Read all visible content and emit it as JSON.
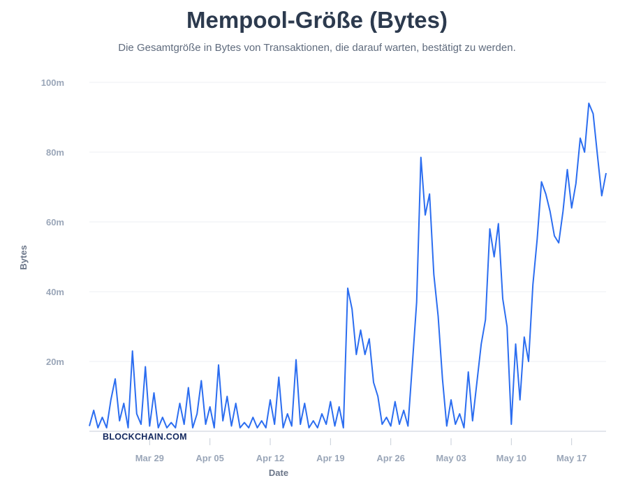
{
  "title": "Mempool-Größe (Bytes)",
  "subtitle": "Die Gesamtgröße in Bytes von Transaktionen, die darauf warten, bestätigt zu werden.",
  "watermark": "BLOCKCHAIN.COM",
  "colors": {
    "line": "#2b6df0",
    "grid": "#eceff3",
    "axis": "#c7ced8"
  },
  "chart_data": {
    "type": "line",
    "title": "Mempool-Größe (Bytes)",
    "xlabel": "Date",
    "ylabel": "Bytes",
    "ylim": [
      0,
      100000000
    ],
    "y_ticks": [
      {
        "value": 20000000,
        "label": "20m"
      },
      {
        "value": 40000000,
        "label": "40m"
      },
      {
        "value": 60000000,
        "label": "60m"
      },
      {
        "value": 80000000,
        "label": "80m"
      },
      {
        "value": 100000000,
        "label": "100m"
      }
    ],
    "x_range": [
      "2020-03-22",
      "2020-05-21"
    ],
    "x_ticks": [
      {
        "date": "2020-03-29",
        "label": "Mar 29"
      },
      {
        "date": "2020-04-05",
        "label": "Apr 05"
      },
      {
        "date": "2020-04-12",
        "label": "Apr 12"
      },
      {
        "date": "2020-04-19",
        "label": "Apr 19"
      },
      {
        "date": "2020-04-26",
        "label": "Apr 26"
      },
      {
        "date": "2020-05-03",
        "label": "May 03"
      },
      {
        "date": "2020-05-10",
        "label": "May 10"
      },
      {
        "date": "2020-05-17",
        "label": "May 17"
      }
    ],
    "grid": true,
    "series": [
      {
        "points": [
          [
            "2020-03-22",
            1500000
          ],
          [
            "2020-03-22T12",
            6000000
          ],
          [
            "2020-03-23",
            1000000
          ],
          [
            "2020-03-23T12",
            4000000
          ],
          [
            "2020-03-24",
            1000000
          ],
          [
            "2020-03-24T12",
            9000000
          ],
          [
            "2020-03-25",
            15000000
          ],
          [
            "2020-03-25T12",
            3000000
          ],
          [
            "2020-03-26",
            8000000
          ],
          [
            "2020-03-26T12",
            1000000
          ],
          [
            "2020-03-27",
            23000000
          ],
          [
            "2020-03-27T12",
            5000000
          ],
          [
            "2020-03-28",
            2000000
          ],
          [
            "2020-03-28T12",
            18500000
          ],
          [
            "2020-03-29",
            1500000
          ],
          [
            "2020-03-29T12",
            11000000
          ],
          [
            "2020-03-30",
            1000000
          ],
          [
            "2020-03-30T12",
            4000000
          ],
          [
            "2020-03-31",
            1000000
          ],
          [
            "2020-03-31T12",
            2500000
          ],
          [
            "2020-04-01",
            1000000
          ],
          [
            "2020-04-01T12",
            8000000
          ],
          [
            "2020-04-02",
            2000000
          ],
          [
            "2020-04-02T12",
            12500000
          ],
          [
            "2020-04-03",
            1000000
          ],
          [
            "2020-04-03T12",
            5000000
          ],
          [
            "2020-04-04",
            14500000
          ],
          [
            "2020-04-04T12",
            2000000
          ],
          [
            "2020-04-05",
            7000000
          ],
          [
            "2020-04-05T12",
            1000000
          ],
          [
            "2020-04-06",
            19000000
          ],
          [
            "2020-04-06T12",
            3000000
          ],
          [
            "2020-04-07",
            10000000
          ],
          [
            "2020-04-07T12",
            1500000
          ],
          [
            "2020-04-08",
            8000000
          ],
          [
            "2020-04-08T12",
            1000000
          ],
          [
            "2020-04-09",
            2500000
          ],
          [
            "2020-04-09T12",
            1000000
          ],
          [
            "2020-04-10",
            4000000
          ],
          [
            "2020-04-10T12",
            1000000
          ],
          [
            "2020-04-11",
            3000000
          ],
          [
            "2020-04-11T12",
            1000000
          ],
          [
            "2020-04-12",
            9000000
          ],
          [
            "2020-04-12T12",
            2000000
          ],
          [
            "2020-04-13",
            15500000
          ],
          [
            "2020-04-13T12",
            1000000
          ],
          [
            "2020-04-14",
            5000000
          ],
          [
            "2020-04-14T12",
            1500000
          ],
          [
            "2020-04-15",
            20500000
          ],
          [
            "2020-04-15T12",
            2000000
          ],
          [
            "2020-04-16",
            8000000
          ],
          [
            "2020-04-16T12",
            1000000
          ],
          [
            "2020-04-17",
            3000000
          ],
          [
            "2020-04-17T12",
            1000000
          ],
          [
            "2020-04-18",
            5000000
          ],
          [
            "2020-04-18T12",
            2000000
          ],
          [
            "2020-04-19",
            8500000
          ],
          [
            "2020-04-19T12",
            1500000
          ],
          [
            "2020-04-20",
            7000000
          ],
          [
            "2020-04-20T12",
            1000000
          ],
          [
            "2020-04-21",
            41000000
          ],
          [
            "2020-04-21T12",
            35000000
          ],
          [
            "2020-04-22",
            22000000
          ],
          [
            "2020-04-22T12",
            29000000
          ],
          [
            "2020-04-23",
            22000000
          ],
          [
            "2020-04-23T12",
            26500000
          ],
          [
            "2020-04-24",
            14000000
          ],
          [
            "2020-04-24T12",
            10000000
          ],
          [
            "2020-04-25",
            2000000
          ],
          [
            "2020-04-25T12",
            4000000
          ],
          [
            "2020-04-26",
            1500000
          ],
          [
            "2020-04-26T12",
            8500000
          ],
          [
            "2020-04-27",
            2000000
          ],
          [
            "2020-04-27T12",
            6000000
          ],
          [
            "2020-04-28",
            1500000
          ],
          [
            "2020-04-28T12",
            19000000
          ],
          [
            "2020-04-29",
            37000000
          ],
          [
            "2020-04-29T12",
            78500000
          ],
          [
            "2020-04-30",
            62000000
          ],
          [
            "2020-04-30T12",
            68000000
          ],
          [
            "2020-05-01",
            45000000
          ],
          [
            "2020-05-01T12",
            33000000
          ],
          [
            "2020-05-02",
            15000000
          ],
          [
            "2020-05-02T12",
            1500000
          ],
          [
            "2020-05-03",
            9000000
          ],
          [
            "2020-05-03T12",
            2000000
          ],
          [
            "2020-05-04",
            5000000
          ],
          [
            "2020-05-04T12",
            1000000
          ],
          [
            "2020-05-05",
            17000000
          ],
          [
            "2020-05-05T12",
            3000000
          ],
          [
            "2020-05-06",
            14000000
          ],
          [
            "2020-05-06T12",
            25000000
          ],
          [
            "2020-05-07",
            32000000
          ],
          [
            "2020-05-07T12",
            58000000
          ],
          [
            "2020-05-08",
            50000000
          ],
          [
            "2020-05-08T12",
            59500000
          ],
          [
            "2020-05-09",
            38000000
          ],
          [
            "2020-05-09T12",
            30000000
          ],
          [
            "2020-05-10",
            2000000
          ],
          [
            "2020-05-10T12",
            25000000
          ],
          [
            "2020-05-11",
            9000000
          ],
          [
            "2020-05-11T12",
            27000000
          ],
          [
            "2020-05-12",
            20000000
          ],
          [
            "2020-05-12T12",
            42000000
          ],
          [
            "2020-05-13",
            55000000
          ],
          [
            "2020-05-13T12",
            71500000
          ],
          [
            "2020-05-14",
            68000000
          ],
          [
            "2020-05-14T12",
            63000000
          ],
          [
            "2020-05-15",
            56000000
          ],
          [
            "2020-05-15T12",
            54000000
          ],
          [
            "2020-05-16",
            63000000
          ],
          [
            "2020-05-16T12",
            75000000
          ],
          [
            "2020-05-17",
            64000000
          ],
          [
            "2020-05-17T12",
            71000000
          ],
          [
            "2020-05-18",
            84000000
          ],
          [
            "2020-05-18T12",
            80000000
          ],
          [
            "2020-05-19",
            94000000
          ],
          [
            "2020-05-19T12",
            91000000
          ],
          [
            "2020-05-20",
            79000000
          ],
          [
            "2020-05-20T12",
            67500000
          ],
          [
            "2020-05-21",
            74000000
          ]
        ]
      }
    ]
  }
}
